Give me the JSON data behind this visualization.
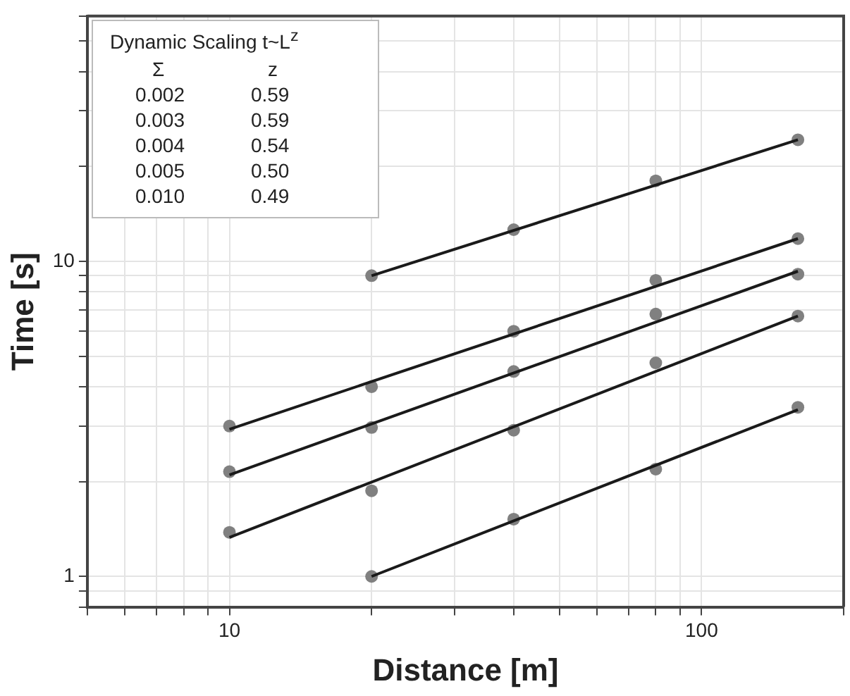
{
  "chart_data": {
    "type": "scatter",
    "xlabel": "Distance [m]",
    "ylabel": "Time [s]",
    "log": "xy",
    "grid": true,
    "legend": false,
    "xlim": [
      5,
      200
    ],
    "ylim": [
      0.8,
      60
    ],
    "xticks": [
      {
        "value": 5,
        "label": null
      },
      {
        "value": 6,
        "label": null
      },
      {
        "value": 7,
        "label": null
      },
      {
        "value": 8,
        "label": null
      },
      {
        "value": 9,
        "label": null
      },
      10,
      {
        "value": 20,
        "label": null
      },
      {
        "value": 30,
        "label": null
      },
      {
        "value": 40,
        "label": null
      },
      {
        "value": 50,
        "label": null
      },
      {
        "value": 60,
        "label": null
      },
      {
        "value": 70,
        "label": null
      },
      {
        "value": 80,
        "label": null
      },
      {
        "value": 90,
        "label": null
      },
      100,
      {
        "value": 200,
        "label": null
      }
    ],
    "yticks": [
      {
        "value": 0.8,
        "label": null
      },
      {
        "value": 0.9,
        "label": null
      },
      1,
      {
        "value": 2,
        "label": null
      },
      {
        "value": 3,
        "label": null
      },
      {
        "value": 4,
        "label": null
      },
      {
        "value": 5,
        "label": null
      },
      {
        "value": 6,
        "label": null
      },
      {
        "value": 7,
        "label": null
      },
      {
        "value": 8,
        "label": null
      },
      {
        "value": 9,
        "label": null
      },
      10,
      {
        "value": 20,
        "label": null
      },
      {
        "value": 30,
        "label": null
      },
      {
        "value": 40,
        "label": null
      },
      {
        "value": 50,
        "label": null
      },
      {
        "value": 60,
        "label": null
      }
    ],
    "annotations": [
      "Dynamic Scaling t~L$^{z}$",
      "Σ",
      "z",
      "0.002",
      "0.59",
      "0.003",
      "0.59",
      "0.004",
      "0.54",
      "0.005",
      "0.50",
      "0.010",
      "0.49"
    ],
    "series": [
      {
        "type": "scatter",
        "marker": "circle",
        "color": "#808080",
        "x": [
          20,
          40,
          80,
          160
        ],
        "values": [
          9.0,
          12.6,
          18,
          24.3
        ]
      },
      {
        "type": "scatter",
        "marker": "circle",
        "color": "#808080",
        "x": [
          10,
          20,
          40,
          80,
          160
        ],
        "values": [
          3.0,
          4.0,
          6.0,
          8.7,
          11.8
        ]
      },
      {
        "type": "scatter",
        "marker": "circle",
        "color": "#808080",
        "x": [
          10,
          20,
          40,
          80,
          160
        ],
        "values": [
          2.15,
          2.97,
          4.47,
          6.8,
          9.1
        ]
      },
      {
        "type": "scatter",
        "marker": "circle",
        "color": "#808080",
        "x": [
          10,
          20,
          40,
          80,
          160
        ],
        "values": [
          1.38,
          1.87,
          2.91,
          4.76,
          6.7
        ]
      },
      {
        "type": "scatter",
        "marker": "circle",
        "color": "#808080",
        "x": [
          20,
          40,
          80,
          160
        ],
        "values": [
          1.0,
          1.52,
          2.19,
          3.44
        ]
      },
      {
        "type": "line",
        "marker": "none",
        "color": "#1a1a1a",
        "x": [
          20,
          160
        ],
        "values": [
          9.0,
          24.3
        ]
      },
      {
        "type": "line",
        "marker": "none",
        "color": "#1a1a1a",
        "x": [
          10,
          160
        ],
        "values": [
          2.93,
          11.8
        ]
      },
      {
        "type": "line",
        "marker": "none",
        "color": "#1a1a1a",
        "x": [
          10,
          160
        ],
        "values": [
          2.1,
          9.3
        ]
      },
      {
        "type": "line",
        "marker": "none",
        "color": "#1a1a1a",
        "x": [
          10,
          160
        ],
        "values": [
          1.33,
          6.7
        ]
      },
      {
        "type": "line",
        "marker": "none",
        "color": "#1a1a1a",
        "x": [
          20,
          160
        ],
        "values": [
          1.0,
          3.38
        ]
      }
    ]
  }
}
